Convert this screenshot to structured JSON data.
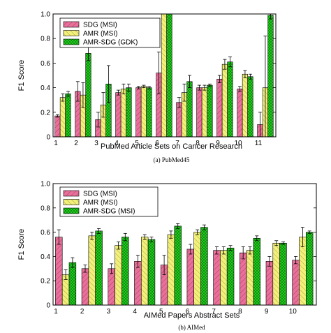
{
  "colors": {
    "sdg": "#e8709a",
    "amr": "#f2f07a",
    "amrsdg": "#22d21e"
  },
  "chart_data": [
    {
      "type": "bar",
      "caption": "(a)  PubMed45",
      "xlabel": "PubMed Article Sets on Cancer Research",
      "ylabel": "F1 Score",
      "ylim": [
        0,
        1.0
      ],
      "yticks": [
        "0",
        "0.2",
        "0.4",
        "0.6",
        "0.8",
        "1.0"
      ],
      "categories": [
        "1",
        "2",
        "3",
        "4",
        "5",
        "6",
        "7",
        "8",
        "9",
        "10",
        "11"
      ],
      "legend_position": "top-left",
      "series": [
        {
          "name": "SDG (MSI)",
          "values": [
            0.17,
            0.37,
            0.14,
            0.36,
            0.4,
            0.52,
            0.28,
            0.4,
            0.47,
            0.39,
            0.1
          ],
          "errors": [
            0.01,
            0.08,
            0.06,
            0.02,
            0.01,
            0.17,
            0.04,
            0.02,
            0.03,
            0.02,
            0.1
          ]
        },
        {
          "name": "AMR (MSI)",
          "values": [
            0.32,
            0.34,
            0.26,
            0.39,
            0.41,
            1.0,
            0.36,
            0.4,
            0.59,
            0.51,
            0.4
          ],
          "errors": [
            0.03,
            0.1,
            0.1,
            0.04,
            0.01,
            0.0,
            0.07,
            0.02,
            0.04,
            0.03,
            0.42
          ]
        },
        {
          "name": "AMR-SDG (GDK)",
          "values": [
            0.35,
            0.68,
            0.43,
            0.4,
            0.4,
            1.0,
            0.45,
            0.42,
            0.61,
            0.49,
            0.99
          ],
          "errors": [
            0.02,
            0.06,
            0.15,
            0.03,
            0.01,
            0.0,
            0.05,
            0.01,
            0.04,
            0.02,
            0.03
          ]
        }
      ]
    },
    {
      "type": "bar",
      "caption": "(b)  AIMed",
      "xlabel": "AIMed Papers Abstract Sets",
      "ylabel": "F1 Score",
      "ylim": [
        0,
        1.0
      ],
      "yticks": [
        "0",
        "0.2",
        "0.4",
        "0.6",
        "0.8",
        "1.0"
      ],
      "categories": [
        "1",
        "2",
        "3",
        "4",
        "5",
        "6",
        "7",
        "8",
        "9",
        "10"
      ],
      "legend_position": "top-left",
      "series": [
        {
          "name": "SDG (MSI)",
          "values": [
            0.56,
            0.3,
            0.3,
            0.36,
            0.33,
            0.46,
            0.45,
            0.43,
            0.36,
            0.37
          ],
          "errors": [
            0.06,
            0.03,
            0.04,
            0.05,
            0.08,
            0.04,
            0.03,
            0.05,
            0.04,
            0.03
          ]
        },
        {
          "name": "AMR (MSI)",
          "values": [
            0.25,
            0.57,
            0.49,
            0.56,
            0.58,
            0.6,
            0.45,
            0.45,
            0.51,
            0.56
          ],
          "errors": [
            0.04,
            0.03,
            0.03,
            0.02,
            0.03,
            0.02,
            0.03,
            0.03,
            0.02,
            0.08
          ]
        },
        {
          "name": "AMR-SDG (MSI)",
          "values": [
            0.35,
            0.61,
            0.56,
            0.54,
            0.65,
            0.64,
            0.47,
            0.55,
            0.51,
            0.6
          ],
          "errors": [
            0.04,
            0.02,
            0.03,
            0.02,
            0.02,
            0.02,
            0.02,
            0.02,
            0.01,
            0.01
          ]
        }
      ]
    }
  ]
}
